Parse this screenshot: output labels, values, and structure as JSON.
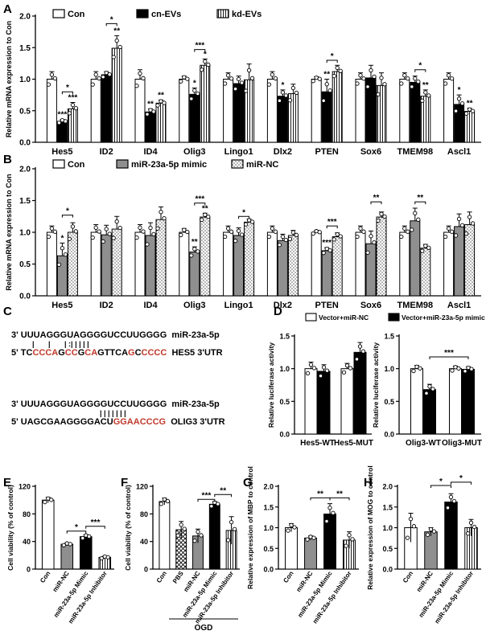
{
  "chart_data": [
    {
      "panel": "A",
      "type": "bar",
      "ylabel": "Relative mRNA expression to Con",
      "ylim": [
        0,
        2.0
      ],
      "yticks": [
        "0.0",
        "0.5",
        "1.0",
        "1.5",
        "2.0"
      ],
      "categories": [
        "Hes5",
        "ID2",
        "ID4",
        "Olig3",
        "Lingo1",
        "Dlx2",
        "PTEN",
        "Sox6",
        "TMEM98",
        "Ascl1"
      ],
      "series": [
        {
          "name": "Con",
          "fill": "#ffffff",
          "values": [
            1.0,
            1.0,
            1.0,
            1.0,
            1.0,
            1.0,
            1.0,
            1.0,
            1.0,
            1.0
          ],
          "err": [
            0.12,
            0.12,
            0.15,
            0.05,
            0.1,
            0.12,
            0.04,
            0.1,
            0.1,
            0.1
          ]
        },
        {
          "name": "cn-EVs",
          "fill": "#000000",
          "values": [
            0.33,
            1.07,
            0.48,
            0.76,
            0.93,
            0.73,
            0.8,
            1.02,
            0.95,
            0.6
          ],
          "err": [
            0.03,
            0.05,
            0.05,
            0.1,
            0.12,
            0.1,
            0.2,
            0.2,
            0.1,
            0.15
          ]
        },
        {
          "name": "kd-EVs",
          "fill": "stripes",
          "values": [
            0.53,
            1.49,
            0.62,
            1.22,
            0.99,
            0.77,
            1.12,
            0.9,
            0.73,
            0.49
          ],
          "err": [
            0.1,
            0.2,
            0.05,
            0.1,
            0.25,
            0.15,
            0.1,
            0.2,
            0.1,
            0.05
          ]
        }
      ],
      "star_labels": [
        {
          "cat": 0,
          "series": 1,
          "text": "***"
        },
        {
          "cat": 0,
          "series": 2,
          "text": "***"
        },
        {
          "cat": 1,
          "series": 2,
          "text": "**"
        },
        {
          "cat": 2,
          "series": 1,
          "text": "**"
        },
        {
          "cat": 2,
          "series": 2,
          "text": "**"
        },
        {
          "cat": 3,
          "series": 1,
          "text": "*"
        },
        {
          "cat": 3,
          "series": 2,
          "text": "*"
        },
        {
          "cat": 5,
          "series": 1,
          "text": "*"
        },
        {
          "cat": 6,
          "series": 1,
          "text": "**"
        },
        {
          "cat": 8,
          "series": 2,
          "text": "**"
        },
        {
          "cat": 9,
          "series": 1,
          "text": "*"
        },
        {
          "cat": 9,
          "series": 2,
          "text": "**"
        }
      ],
      "brackets": [
        {
          "cat": 0,
          "from": 1,
          "to": 2,
          "level": 0.8,
          "text": "*"
        },
        {
          "cat": 1,
          "from": 1,
          "to": 2,
          "level": 1.88,
          "text": "*"
        },
        {
          "cat": 3,
          "from": 1,
          "to": 2,
          "level": 1.47,
          "text": "***"
        },
        {
          "cat": 6,
          "from": 1,
          "to": 2,
          "level": 1.3,
          "text": "*"
        },
        {
          "cat": 8,
          "from": 1,
          "to": 2,
          "level": 1.15,
          "text": "*"
        }
      ]
    },
    {
      "panel": "B",
      "type": "bar",
      "ylabel": "Relative mRNA expression to Con",
      "ylim": [
        0,
        2.0
      ],
      "yticks": [
        "0.0",
        "0.5",
        "1.0",
        "1.5",
        "2.0"
      ],
      "categories": [
        "Hes5",
        "ID2",
        "ID4",
        "Olig3",
        "Lingo1",
        "Dlx2",
        "PTEN",
        "Sox6",
        "TMEM98",
        "Ascl1"
      ],
      "series": [
        {
          "name": "Con",
          "fill": "#ffffff",
          "values": [
            1.0,
            1.0,
            1.0,
            1.0,
            1.0,
            1.0,
            1.0,
            1.0,
            1.0,
            1.0
          ],
          "err": [
            0.1,
            0.12,
            0.12,
            0.06,
            0.1,
            0.1,
            0.03,
            0.1,
            0.1,
            0.1
          ]
        },
        {
          "name": "miR-23a-5p mimic",
          "fill": "#8f8f8f",
          "values": [
            0.63,
            0.96,
            0.95,
            0.69,
            0.95,
            0.87,
            0.71,
            0.82,
            1.18,
            1.09
          ],
          "err": [
            0.2,
            0.15,
            0.2,
            0.08,
            0.12,
            0.1,
            0.05,
            0.2,
            0.2,
            0.2
          ]
        },
        {
          "name": "miR-NC",
          "fill": "dots",
          "values": [
            1.0,
            1.05,
            1.2,
            1.24,
            1.16,
            0.95,
            0.93,
            1.24,
            0.75,
            1.12
          ],
          "err": [
            0.15,
            0.2,
            0.2,
            0.06,
            0.05,
            0.08,
            0.06,
            0.08,
            0.06,
            0.2
          ]
        }
      ],
      "star_labels": [
        {
          "cat": 0,
          "series": 1,
          "text": "*"
        },
        {
          "cat": 3,
          "series": 1,
          "text": "**"
        },
        {
          "cat": 3,
          "series": 2,
          "text": "**"
        },
        {
          "cat": 6,
          "series": 1,
          "text": "***"
        }
      ],
      "brackets": [
        {
          "cat": 0,
          "from": 1,
          "to": 2,
          "level": 1.27,
          "text": "*"
        },
        {
          "cat": 3,
          "from": 1,
          "to": 2,
          "level": 1.46,
          "text": "***"
        },
        {
          "cat": 4,
          "from": 1,
          "to": 2,
          "level": 1.25,
          "text": "*"
        },
        {
          "cat": 6,
          "from": 1,
          "to": 2,
          "level": 1.1,
          "text": "***"
        },
        {
          "cat": 7,
          "from": 1,
          "to": 2,
          "level": 1.48,
          "text": "**"
        },
        {
          "cat": 8,
          "from": 1,
          "to": 2,
          "level": 1.48,
          "text": "**"
        }
      ]
    },
    {
      "panel": "D-left",
      "type": "bar",
      "ylabel": "Relative luciferase activity",
      "ylim": [
        0,
        1.5
      ],
      "yticks": [
        "0.0",
        "0.5",
        "1.0",
        "1.5"
      ],
      "categories": [
        "Hes5-WT",
        "Hes5-MUT"
      ],
      "series": [
        {
          "name": "Vector+miR-NC",
          "fill": "#ffffff",
          "values": [
            1.0,
            1.0
          ],
          "err": [
            0.1,
            0.08
          ]
        },
        {
          "name": "Vector+miR-23a-5p mimic",
          "fill": "#000000",
          "values": [
            0.96,
            1.25
          ],
          "err": [
            0.1,
            0.15
          ]
        }
      ],
      "star_labels": [],
      "brackets": []
    },
    {
      "panel": "D-right",
      "type": "bar",
      "ylabel": "Relative luciferase activity",
      "ylim": [
        0,
        1.5
      ],
      "yticks": [
        "0.0",
        "0.5",
        "1.0",
        "1.5"
      ],
      "categories": [
        "Olig3-WT",
        "Olig3-MUT"
      ],
      "series": [
        {
          "name": "Vector+miR-NC",
          "fill": "#ffffff",
          "values": [
            1.0,
            1.0
          ],
          "err": [
            0.05,
            0.04
          ]
        },
        {
          "name": "Vector+miR-23a-5p mimic",
          "fill": "#000000",
          "values": [
            0.68,
            0.99
          ],
          "err": [
            0.08,
            0.04
          ]
        }
      ],
      "star_labels": [],
      "brackets": [
        {
          "from": 0,
          "to": 1,
          "level": 1.18,
          "text": "***"
        }
      ]
    },
    {
      "panel": "E",
      "type": "bar",
      "ylabel": "Cell viability (% of control)",
      "ylim": [
        0,
        120
      ],
      "yticks": [
        "0",
        "40",
        "80",
        "120"
      ],
      "categories": [
        "Con",
        "miR-NC",
        "miR-23a-5p Mimic",
        "miR-23a-5p Inhibitor"
      ],
      "fills": [
        "#ffffff",
        "#8f8f8f",
        "#000000",
        "stripes"
      ],
      "values": [
        100,
        36,
        47,
        17
      ],
      "err": [
        4,
        2,
        3,
        2
      ],
      "brackets": [
        {
          "from": 1,
          "to": 2,
          "level": 55,
          "text": "*"
        },
        {
          "from": 2,
          "to": 3,
          "level": 62,
          "text": "***"
        }
      ]
    },
    {
      "panel": "F",
      "type": "bar",
      "ylabel": "Cell viability (% of control)",
      "ylim": [
        0,
        120
      ],
      "yticks": [
        "0",
        "40",
        "80",
        "120"
      ],
      "categories": [
        "Con",
        "PBS",
        "miR-NC",
        "miR-23a-5p Mimic",
        "miR-23a-5p Inhibitor"
      ],
      "fills": [
        "#ffffff",
        "crosshatch",
        "#8f8f8f",
        "#000000",
        "stripes"
      ],
      "values": [
        98,
        57,
        48,
        94,
        56
      ],
      "err": [
        5,
        12,
        10,
        4,
        20
      ],
      "group_label": "OGD",
      "brackets": [
        {
          "from": 2,
          "to": 3,
          "level": 101,
          "text": "***"
        },
        {
          "from": 3,
          "to": 4,
          "level": 108,
          "text": "**"
        }
      ]
    },
    {
      "panel": "G",
      "type": "bar",
      "ylabel": "Relative expression of MBP to control",
      "ylim": [
        0,
        2.0
      ],
      "yticks": [
        "0.0",
        "0.5",
        "1.0",
        "1.5",
        "2.0"
      ],
      "categories": [
        "Con",
        "miR-NC",
        "miR-23a-5p Mimic",
        "miR-23a-5p Inhibitor"
      ],
      "fills": [
        "#ffffff",
        "#8f8f8f",
        "#000000",
        "stripes"
      ],
      "values": [
        1.0,
        0.75,
        1.33,
        0.7
      ],
      "err": [
        0.1,
        0.05,
        0.25,
        0.2
      ],
      "brackets": [
        {
          "from": 1,
          "to": 2,
          "level": 1.72,
          "text": "**"
        },
        {
          "from": 2,
          "to": 3,
          "level": 1.72,
          "text": "**"
        }
      ]
    },
    {
      "panel": "H",
      "type": "bar",
      "ylabel": "Relative expression of MOG to control",
      "ylim": [
        0,
        2.0
      ],
      "yticks": [
        "0.0",
        "0.5",
        "1.0",
        "1.5",
        "2.0"
      ],
      "categories": [
        "Con",
        "miR-NC",
        "miR-23a-5p Mimic",
        "miR-23a-5p Inhibitor"
      ],
      "fills": [
        "#ffffff",
        "#8f8f8f",
        "#000000",
        "stripes"
      ],
      "values": [
        1.0,
        0.9,
        1.62,
        1.0
      ],
      "err": [
        0.35,
        0.1,
        0.2,
        0.2
      ],
      "brackets": [
        {
          "from": 1,
          "to": 2,
          "level": 2.02,
          "text": "*"
        },
        {
          "from": 2,
          "to": 3,
          "level": 2.1,
          "text": "*"
        }
      ]
    }
  ],
  "panel_letters": {
    "A": "A",
    "B": "B",
    "C": "C",
    "D": "D",
    "E": "E",
    "F": "F",
    "G": "G",
    "H": "H"
  },
  "legend_a": [
    "Con",
    "cn-EVs",
    "kd-EVs"
  ],
  "legend_b": [
    "Con",
    "miR-23a-5p mimic",
    "miR-NC"
  ],
  "legend_d": [
    "Vector+miR-NC",
    "Vector+miR-23a-5p mimic"
  ],
  "sequence": {
    "mir_hes5": "3' UUUAGGGUAGGGGUCCUUGGGG  miR-23a-5p",
    "pairing_hes5": "|       |       | :| | | | |",
    "hes5_prefix": "5' TC",
    "hes5_segments": [
      {
        "t": "CCCA",
        "red": true
      },
      {
        "t": "G",
        "red": false
      },
      {
        "t": "CC",
        "red": true
      },
      {
        "t": "G",
        "red": false
      },
      {
        "t": "CA",
        "red": true
      },
      {
        "t": "GTTCA",
        "red": false
      },
      {
        "t": "G",
        "red": true
      },
      {
        "t": "C",
        "red": false
      },
      {
        "t": "CCCC",
        "red": true
      }
    ],
    "hes5_suffix": "  HES5 3'UTR",
    "mir_olig3": "3' UUUAGGGUAGGGGUCCUUGGGG  miR-23a-5p",
    "pairing_olig3": "| | | | | | |",
    "olig3_prefix": "5' UAGCGAAGGGGACU",
    "olig3_red": "GGAACCCG",
    "olig3_suffix": "  OLIG3 3'UTR"
  },
  "colors": {
    "red": "#c0392b",
    "gray": "#8f8f8f",
    "black": "#000000"
  }
}
